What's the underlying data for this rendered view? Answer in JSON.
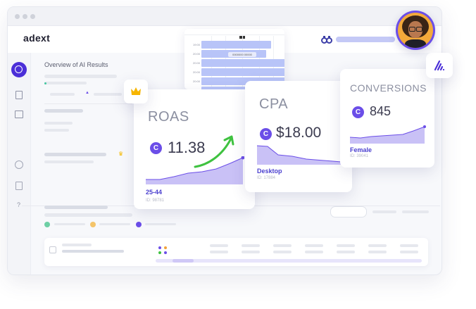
{
  "app": {
    "logo": "adext",
    "panel_title": "Overview of AI Results"
  },
  "cards": {
    "roas": {
      "title": "ROAS",
      "currency_symbol": "C",
      "value": "11.38",
      "segment": "25-44",
      "id": "ID: 98781"
    },
    "cpa": {
      "title": "CPA",
      "currency_symbol": "C",
      "value": "$18.00",
      "segment": "Desktop",
      "id": "ID: 17884"
    },
    "conversions": {
      "title": "CONVERSIONS",
      "currency_symbol": "C",
      "value": "845",
      "segment": "Female",
      "id": "ID: 39041"
    }
  },
  "mini_chart": {
    "row_labels": [
      "19:00",
      "20:00",
      "20:00",
      "20:00",
      "20:00",
      "20:00"
    ],
    "tooltip": "0000000 00000",
    "values": [
      0.55,
      0.51,
      0.68,
      0.72,
      0.71,
      0.52
    ]
  },
  "sidebar": {
    "help_label": "?"
  },
  "colors": {
    "accent": "#6b4ee8",
    "bar": "#b8c4f8",
    "chart_fill": "#c9c1f6",
    "green_arrow": "#3fc240"
  },
  "icons": [
    "crown-icon",
    "binoculars-icon",
    "adext-mark-icon",
    "circle-icon",
    "document-icon",
    "image-icon",
    "copyright-icon"
  ]
}
